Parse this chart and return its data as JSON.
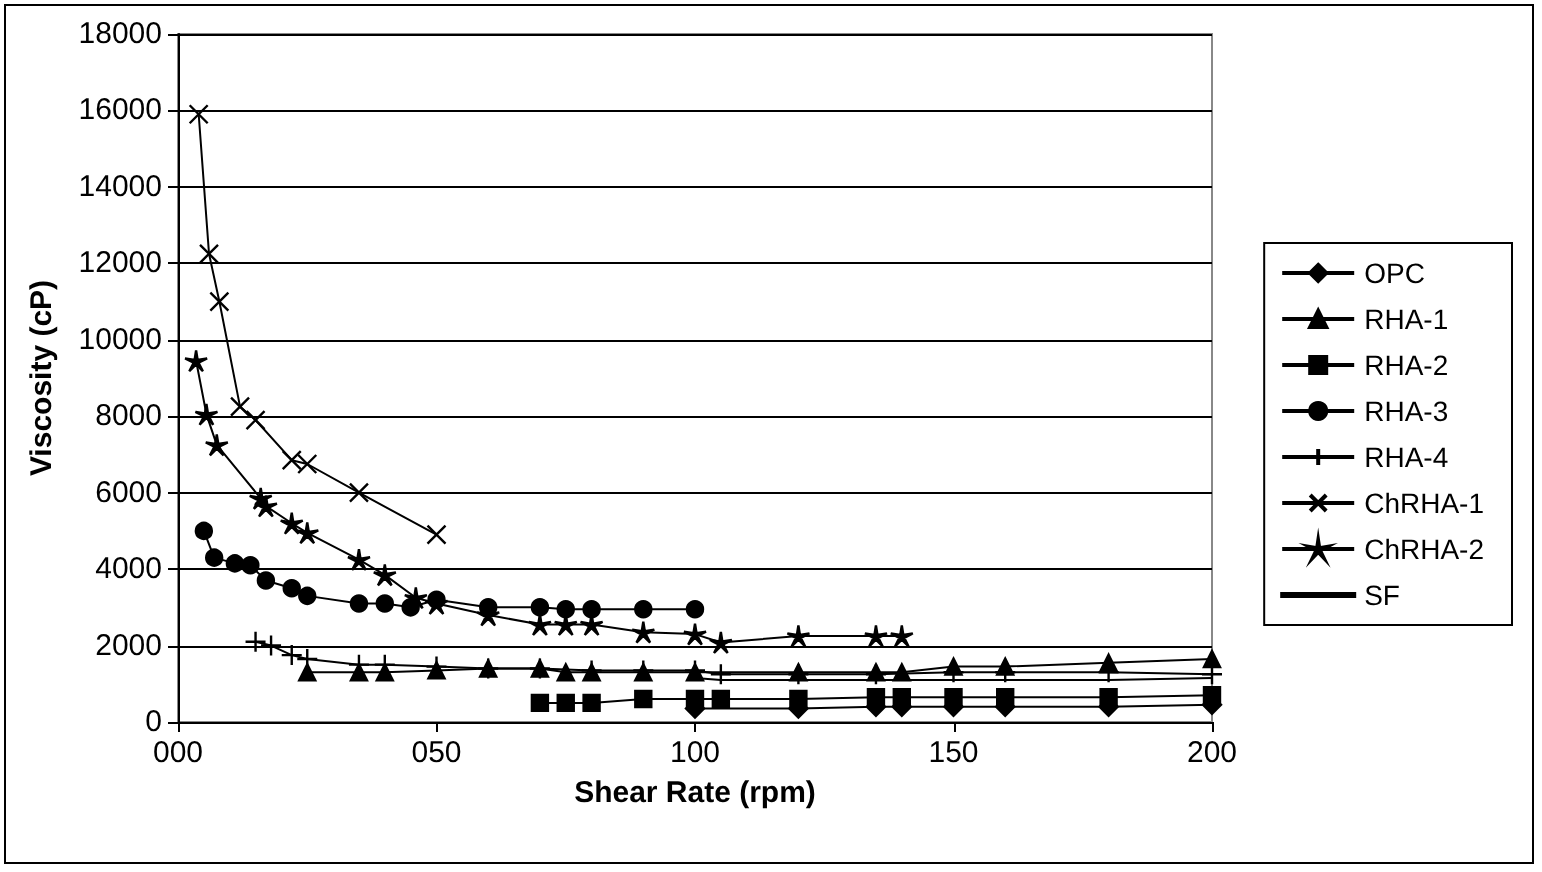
{
  "chart_data": {
    "type": "line",
    "xlabel": "Shear Rate (rpm)",
    "ylabel": "Viscosity (cP)",
    "xlim": [
      0,
      200
    ],
    "xticks": [
      {
        "value": 0,
        "label": "000"
      },
      {
        "value": 50,
        "label": "050"
      },
      {
        "value": 100,
        "label": "100"
      },
      {
        "value": 150,
        "label": "150"
      },
      {
        "value": 200,
        "label": "200"
      }
    ],
    "ylim": [
      0,
      18000
    ],
    "yticks": [
      0,
      2000,
      4000,
      6000,
      8000,
      10000,
      12000,
      14000,
      16000,
      18000
    ],
    "grid": "y",
    "legend": "right",
    "line_style": "solid",
    "series": [
      {
        "name": "OPC",
        "color": "#000000",
        "marker": "diamond",
        "x": [
          100,
          120,
          135,
          140,
          150,
          160,
          180,
          200
        ],
        "values": [
          350,
          350,
          400,
          400,
          400,
          400,
          400,
          450
        ]
      },
      {
        "name": "RHA-1",
        "color": "#000000",
        "marker": "triangle",
        "x": [
          25,
          35,
          40,
          50,
          60,
          70,
          75,
          80,
          90,
          100,
          120,
          135,
          140,
          150,
          160,
          180,
          200
        ],
        "values": [
          1300,
          1300,
          1300,
          1350,
          1400,
          1400,
          1300,
          1300,
          1300,
          1300,
          1300,
          1300,
          1300,
          1450,
          1450,
          1550,
          1650
        ]
      },
      {
        "name": "RHA-2",
        "color": "#000000",
        "marker": "square",
        "x": [
          70,
          75,
          80,
          90,
          100,
          105,
          120,
          135,
          140,
          150,
          160,
          180,
          200
        ],
        "values": [
          500,
          500,
          500,
          600,
          600,
          600,
          600,
          650,
          650,
          650,
          650,
          650,
          700
        ]
      },
      {
        "name": "RHA-3",
        "color": "#000000",
        "marker": "circle",
        "x": [
          5,
          7,
          11,
          14,
          17,
          22,
          25,
          35,
          40,
          45,
          50,
          60,
          70,
          75,
          80,
          90,
          100
        ],
        "values": [
          5000,
          4300,
          4150,
          4100,
          3700,
          3500,
          3300,
          3100,
          3100,
          3000,
          3200,
          3000,
          3000,
          2950,
          2950,
          2950,
          2950
        ]
      },
      {
        "name": "RHA-4",
        "color": "#000000",
        "marker": "plus",
        "x": [
          15,
          18,
          22,
          25,
          35,
          40,
          50,
          60,
          70,
          80,
          90,
          100,
          105,
          120,
          135,
          150,
          160,
          180,
          200
        ],
        "values": [
          2100,
          2000,
          1750,
          1650,
          1500,
          1500,
          1450,
          1400,
          1400,
          1350,
          1350,
          1350,
          1250,
          1250,
          1250,
          1300,
          1300,
          1300,
          1250
        ]
      },
      {
        "name": "ChRHA-1",
        "color": "#000000",
        "marker": "cross",
        "x": [
          4,
          6,
          8,
          12,
          15,
          22,
          25,
          35,
          50
        ],
        "values": [
          15900,
          12250,
          11000,
          8250,
          7900,
          6850,
          6750,
          6000,
          4900
        ]
      },
      {
        "name": "ChRHA-2",
        "color": "#000000",
        "marker": "star",
        "x": [
          3.5,
          5.5,
          7.5,
          16,
          17,
          22,
          25,
          35,
          40,
          46,
          50,
          60,
          70,
          75,
          80,
          90,
          100,
          105,
          120,
          135,
          140
        ],
        "values": [
          9450,
          8050,
          7250,
          5850,
          5650,
          5200,
          4950,
          4250,
          3850,
          3250,
          3100,
          2800,
          2550,
          2550,
          2550,
          2350,
          2300,
          2080,
          2250,
          2250,
          2250
        ]
      },
      {
        "name": "SF",
        "color": "#000000",
        "marker": "none",
        "x": [
          100,
          105,
          120,
          135,
          140,
          150,
          160,
          180,
          200
        ],
        "values": [
          1150,
          1100,
          1100,
          1100,
          1100,
          1100,
          1100,
          1100,
          1150
        ]
      }
    ]
  }
}
